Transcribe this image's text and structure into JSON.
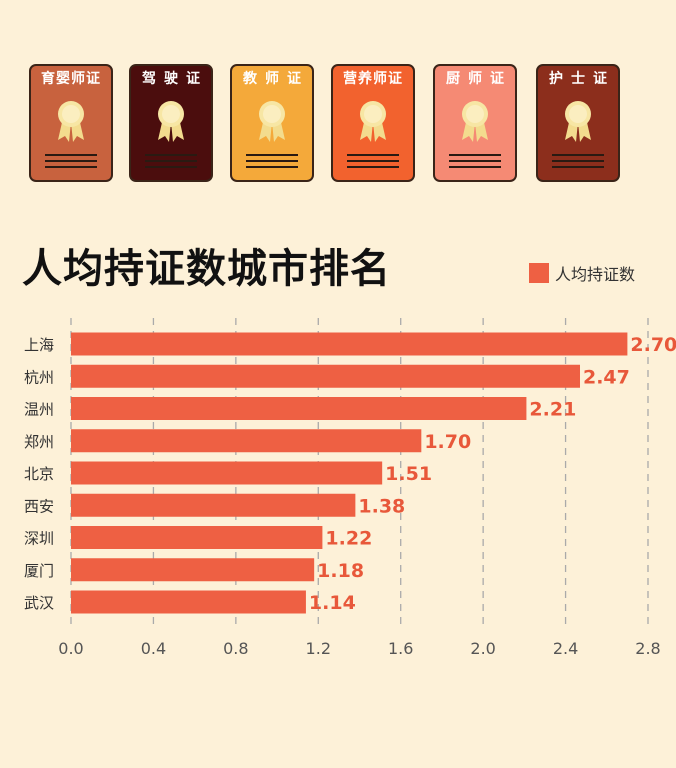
{
  "certificates": [
    {
      "label": "育婴师证",
      "color": "#c8623e",
      "icon": "medal-icon"
    },
    {
      "label": "驾驶证",
      "color": "#4b0d0d",
      "icon": "medal-icon"
    },
    {
      "label": "教师证",
      "color": "#f4a93a",
      "icon": "medal-icon"
    },
    {
      "label": "营养师证",
      "color": "#f2622e",
      "icon": "medal-icon"
    },
    {
      "label": "厨师证",
      "color": "#f58a74",
      "icon": "medal-icon"
    },
    {
      "label": "护士证",
      "color": "#8c2e1c",
      "icon": "medal-icon"
    }
  ],
  "chart_data": {
    "type": "bar",
    "orientation": "horizontal",
    "title": "人均持证数城市排名",
    "categories": [
      "上海",
      "杭州",
      "温州",
      "郑州",
      "北京",
      "西安",
      "深圳",
      "厦门",
      "武汉"
    ],
    "series": [
      {
        "name": "人均持证数",
        "values": [
          2.7,
          2.47,
          2.21,
          1.7,
          1.51,
          1.38,
          1.22,
          1.18,
          1.14
        ],
        "color": "#ee6043"
      }
    ],
    "data_labels": [
      "2.70",
      "2.47",
      "2.21",
      "1.70",
      "1.51",
      "1.38",
      "1.22",
      "1.18",
      "1.14"
    ],
    "xlim": [
      0,
      2.8
    ],
    "xticks": [
      "0.0",
      "0.4",
      "0.8",
      "1.2",
      "1.6",
      "2.0",
      "2.4",
      "2.8"
    ],
    "grid": "vertical dashed",
    "legend_position": "top-right",
    "colors": {
      "bar": "#ee6043",
      "label": "#e8583a",
      "grid": "#aaaaaa",
      "background": "#fdf1d8"
    }
  }
}
